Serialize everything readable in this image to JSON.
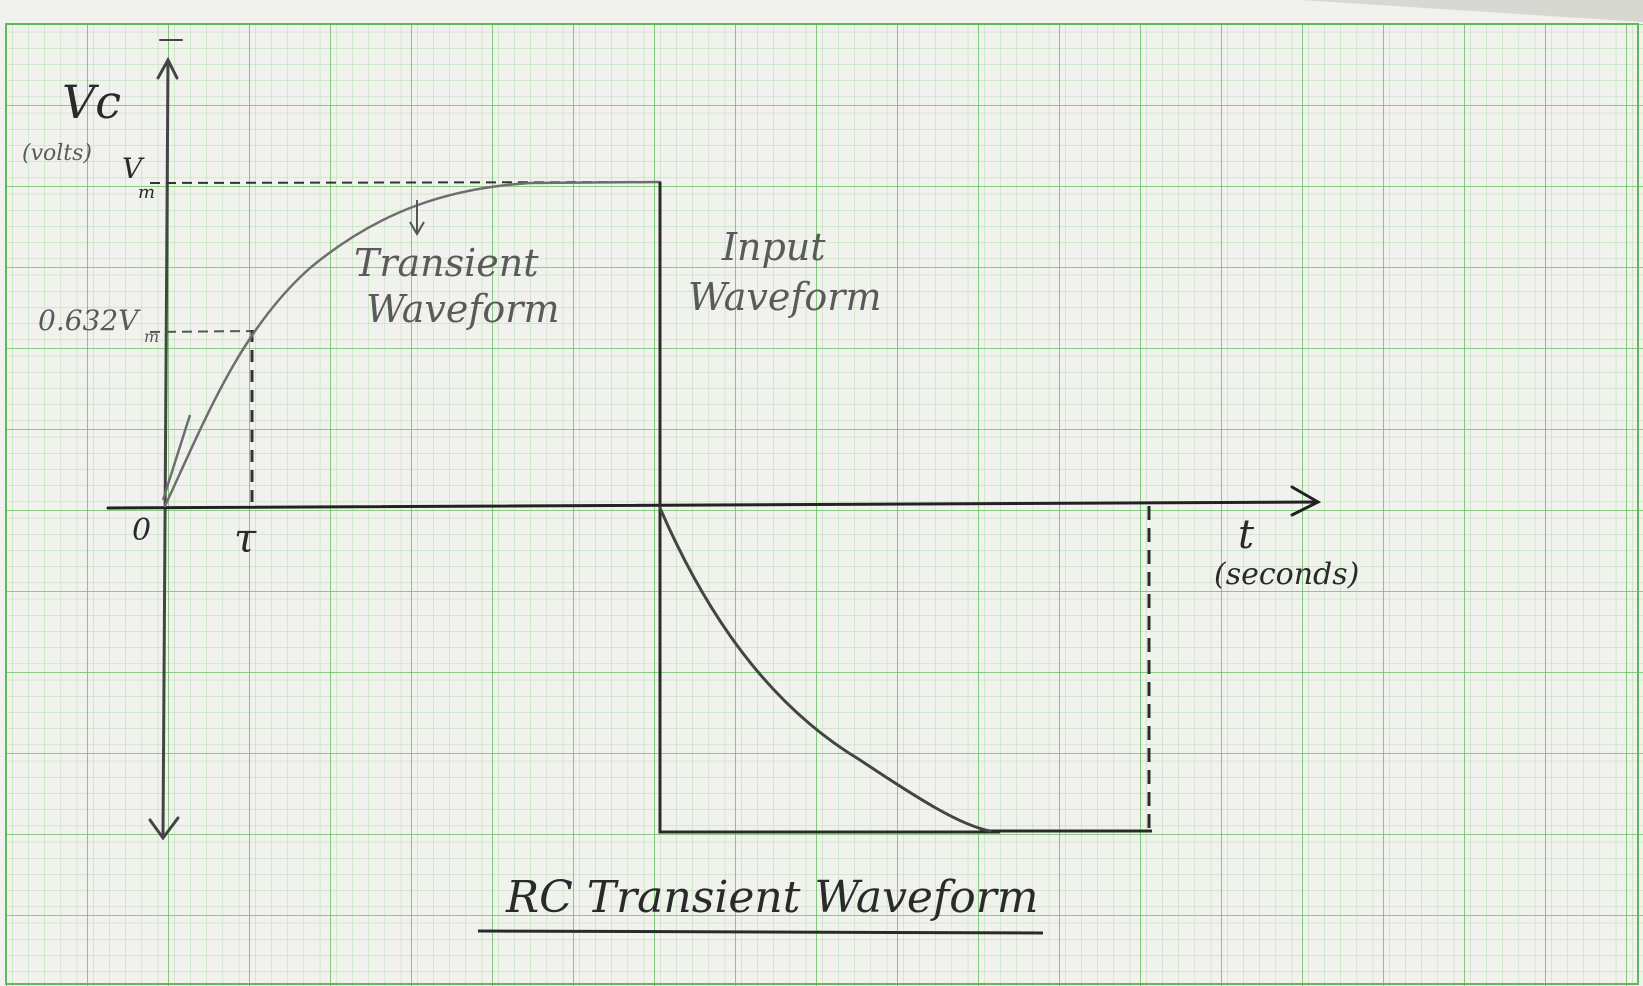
{
  "paper": {
    "background": "#f1f2ee",
    "grid_minor_color": "#a9d6a2",
    "grid_major_color": "#5fb95a",
    "ink_color": "#2b2b2b",
    "pencil_color": "#6e6e6e"
  },
  "axes": {
    "y_label": "Vc",
    "y_unit": "(volts)",
    "x_label": "t",
    "x_unit": "(seconds)",
    "origin_label": "0",
    "tau_label": "τ"
  },
  "levels": {
    "vm_label": "V",
    "vm_subscript": "m",
    "partial_label": "0.632V",
    "partial_subscript": "m"
  },
  "annotations": {
    "transient_line1": "Transient",
    "transient_line2": "Waveform",
    "input_line1": "Input",
    "input_line2": "Waveform"
  },
  "title": "RC Transient Waveform"
}
